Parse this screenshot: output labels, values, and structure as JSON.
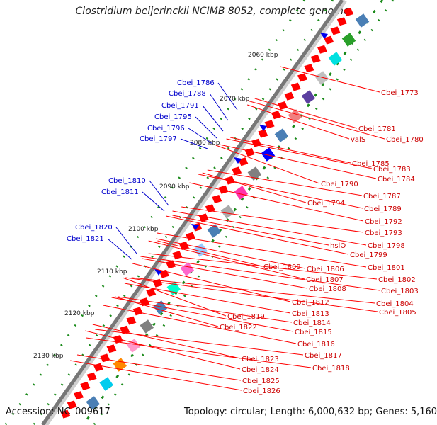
{
  "title": "Clostridium beijerinckii NCIMB 8052, complete genome",
  "footer": {
    "accession": "Accession: NC_009617",
    "topology": "Topology: circular; Length: 6,000,632 bp; Genes: 5,160"
  },
  "scale_labels": [
    "2060 kbp",
    "2070 kbp",
    "2080 kbp",
    "2090 kbp",
    "2100 kbp",
    "2110 kbp",
    "2120 kbp",
    "2130 kbp"
  ],
  "left_labels": [
    "Cbei_1786",
    "Cbei_1788",
    "Cbei_1791",
    "Cbei_1795",
    "Cbei_1796",
    "Cbei_1797",
    "Cbei_1810",
    "Cbei_1811",
    "Cbei_1820",
    "Cbei_1821"
  ],
  "right_labels": [
    "Cbei_1773",
    "Cbei_1781",
    "valS",
    "Cbei_1780",
    "Cbei_1785",
    "Cbei_1783",
    "Cbei_1784",
    "Cbei_1790",
    "Cbei_1787",
    "Cbei_1794",
    "Cbei_1789",
    "Cbei_1792",
    "Cbei_1793",
    "hslO",
    "Cbei_1798",
    "Cbei_1799",
    "Cbei_1809",
    "Cbei_1806",
    "Cbei_1801",
    "Cbei_1807",
    "Cbei_1802",
    "Cbei_1808",
    "Cbei_1803",
    "Cbei_1812",
    "Cbei_1804",
    "Cbei_1813",
    "Cbei_1805",
    "Cbei_1819",
    "Cbei_1814",
    "Cbei_1822",
    "Cbei_1815",
    "Cbei_1816",
    "Cbei_1817",
    "Cbei_1818",
    "Cbei_1823",
    "Cbei_1824",
    "Cbei_1825",
    "Cbei_1826"
  ],
  "colors": {
    "backbone": "#777777",
    "gene_arrow": "#ff0000",
    "left_label": "#0000cc",
    "right_label": "#cc0000",
    "tick_dot": "#00aa00"
  }
}
